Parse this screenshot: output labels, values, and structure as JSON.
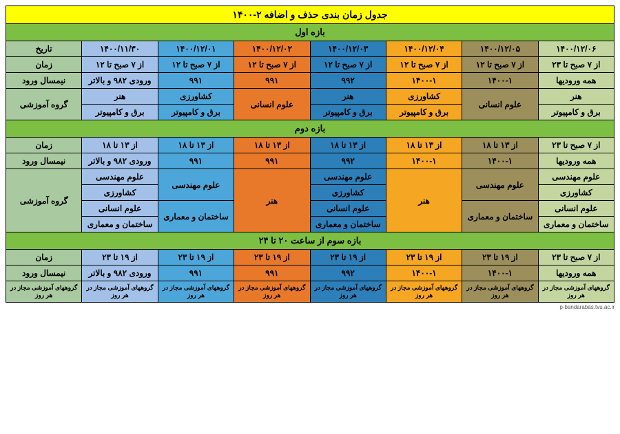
{
  "title": "جدول زمان بندی حذف و اضافه ۲-۱۴۰۰",
  "footer": "p-bandarabas.tvu.ac.ir",
  "colors": {
    "title": "#ffff00",
    "section": "#7cbf42",
    "hdr": "#a9c9a0",
    "c1": "#c4d6a0",
    "c2": "#9c8f5c",
    "c3": "#f5a623",
    "c4": "#2c7fb8",
    "c5": "#e8792a",
    "c6": "#4da6d9",
    "c7": "#a3c1e8"
  },
  "headers": {
    "date": "تاریخ",
    "time": "زمان",
    "semester": "نیمسال ورود",
    "group": "گروه آموزشی"
  },
  "sections": {
    "s1": "بازه اول",
    "s2": "بازه دوم",
    "s3": "بازه سوم از ساعت ۲۰ تا ۲۴"
  },
  "dates": {
    "d1": "۱۴۰۰/۱۲/۰۶",
    "d2": "۱۴۰۰/۱۲/۰۵",
    "d3": "۱۴۰۰/۱۲/۰۴",
    "d4": "۱۴۰۰/۱۲/۰۳",
    "d5": "۱۴۰۰/۱۲/۰۲",
    "d6": "۱۴۰۰/۱۲/۰۱",
    "d7": "۱۴۰۰/۱۱/۳۰"
  },
  "times": {
    "t7_23": "از ۷ صبح تا ۲۳",
    "t7_12": "از ۷ صبح تا ۱۲",
    "t13_18": "از ۱۳ تا ۱۸",
    "t19_23": "از ۱۹ تا ۲۳"
  },
  "semesters": {
    "all": "همه ورودیها",
    "s1400_1": "۱۴۰۰-۱",
    "s992": "۹۹۲",
    "s991": "۹۹۱",
    "s982up": "ورودی ۹۸۲ و بالاتر"
  },
  "groups": {
    "honar": "هنر",
    "oloom_ensani": "علوم انسانی",
    "keshavarzi": "کشاورزی",
    "bargh": "برق و کامپیوتر",
    "mohandesi": "علوم مهندسی",
    "sakhteman": "ساختمان و معماری",
    "all_daily": "گروههای آموزشی مجاز در هر روز"
  }
}
